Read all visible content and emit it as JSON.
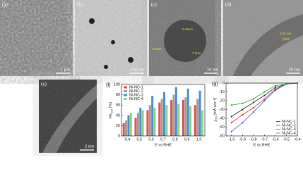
{
  "panels": [
    {
      "label": "(a)",
      "scale": "1 μm"
    },
    {
      "label": "(b)",
      "scale": "100 nm"
    },
    {
      "label": "(c)",
      "scale": "10 nm",
      "notes": [
        "0.34nm",
        "5.0nm",
        "7.5nm"
      ]
    },
    {
      "label": "(d)",
      "scale": "20 nm",
      "notes": [
        "0.34 nm",
        "(002)"
      ]
    },
    {
      "label": "(e)",
      "scale": "2 nm"
    }
  ],
  "chart_data": [
    {
      "type": "bar",
      "panel": "(f)",
      "ylabel": "FE",
      "ylabel_sub": "CO",
      "ylabel_unit": " (%)",
      "xlabel": "E vs RHE",
      "categories": [
        "0.4",
        "0.5",
        "0.6",
        "0.7",
        "0.8",
        "0.9",
        "1.0"
      ],
      "series": [
        {
          "name": "Ni-NC-1",
          "color": "#d9534f",
          "values": [
            25,
            35,
            50,
            65,
            70,
            70,
            60
          ]
        },
        {
          "name": "Ni-NC-2",
          "color": "#9e9e9e",
          "values": [
            30,
            45,
            60,
            72,
            80,
            75,
            72
          ]
        },
        {
          "name": "Ni-NC-3",
          "color": "#4a90c8",
          "values": [
            40,
            55,
            78,
            85,
            95,
            92,
            88
          ]
        },
        {
          "name": "Ni-NC-4",
          "color": "#8fd18f",
          "values": [
            45,
            50,
            55,
            60,
            62,
            58,
            50
          ]
        }
      ],
      "ylim": [
        0,
        100
      ],
      "yticks": [
        0,
        20,
        40,
        60,
        80,
        100
      ],
      "legend": "top-left"
    },
    {
      "type": "line",
      "panel": "(g)",
      "ylabel": "j",
      "ylabel_sub": "CO",
      "ylabel_unit": " (mA cm⁻²)",
      "xlabel": "E vs RHE",
      "x": [
        -1,
        -0.9,
        -0.8,
        -0.7,
        -0.6,
        -0.5,
        -0.4
      ],
      "series": [
        {
          "name": "Ni-NC-1",
          "color": "#222222",
          "values": [
            -38,
            -30,
            -22,
            -14,
            -5,
            -1,
            0
          ]
        },
        {
          "name": "Ni-NC-2",
          "color": "#d62728",
          "values": [
            -45,
            -36,
            -28,
            -18,
            -7,
            -1,
            0
          ]
        },
        {
          "name": "Ni-NC-3",
          "color": "#1f4fd6",
          "values": [
            -55,
            -45,
            -33,
            -20,
            -8,
            -1,
            0
          ]
        },
        {
          "name": "Ni-NC-4",
          "color": "#2ca02c",
          "values": [
            -25,
            -23,
            -18,
            -10,
            -3,
            -1,
            0
          ]
        }
      ],
      "xlim": [
        -1.05,
        -0.4
      ],
      "xticks": [
        {
          "value": -1,
          "label": "-1.0"
        },
        -0.9,
        -0.8,
        -0.7,
        -0.6,
        -0.5,
        -0.4
      ],
      "ylim": [
        -60,
        0
      ],
      "yticks": [
        0,
        -10,
        -20,
        -30,
        -40,
        -50,
        -60
      ],
      "legend": "bottom-right"
    }
  ]
}
